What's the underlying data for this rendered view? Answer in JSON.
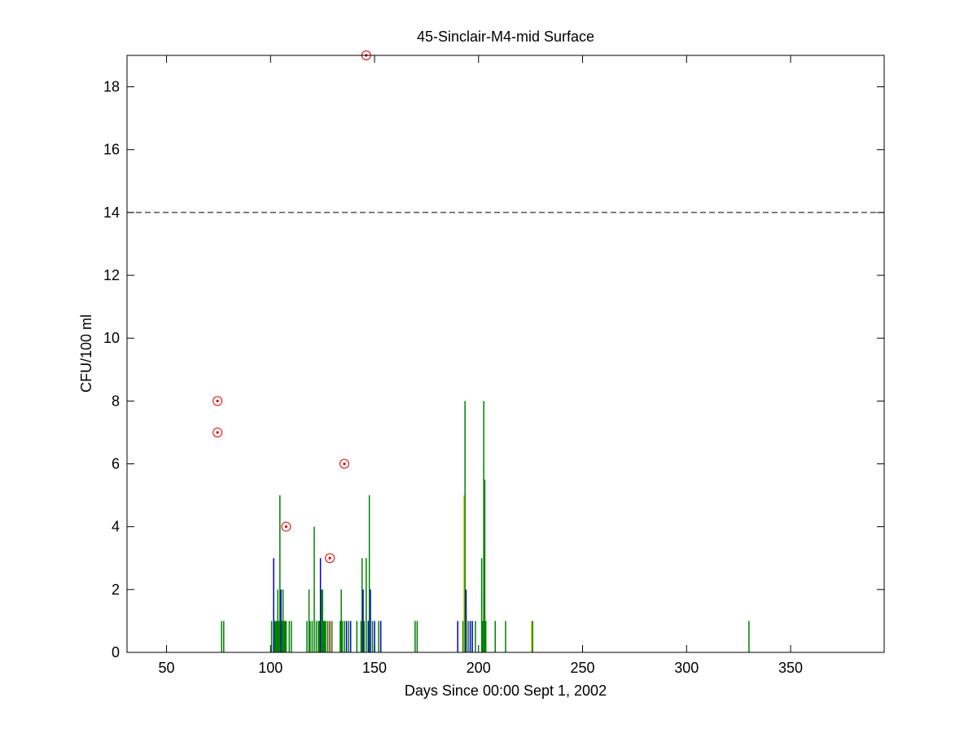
{
  "chart_data": {
    "type": "bar",
    "title": "45-Sinclair-M4-mid Surface",
    "xlabel": "Days Since 00:00 Sept 1, 2002",
    "ylabel": "CFU/100 ml",
    "xlim": [
      31,
      395
    ],
    "ylim": [
      0,
      19
    ],
    "xticks": [
      50,
      100,
      150,
      200,
      250,
      300,
      350
    ],
    "yticks": [
      0,
      2,
      4,
      6,
      8,
      10,
      12,
      14,
      16,
      18
    ],
    "threshold": 14,
    "threshold_style": "dashed",
    "grid": false,
    "legend": "none",
    "colors": {
      "green": "#008000",
      "blue": "#0000cc",
      "red": "#cc0000",
      "yellow": "#cccc00",
      "threshold": "#000000",
      "marker": "#dd0000"
    },
    "bars": [
      {
        "x": 76.5,
        "value": 1,
        "color": "green"
      },
      {
        "x": 77.5,
        "value": 1,
        "color": "green"
      },
      {
        "x": 100.5,
        "value": 1,
        "color": "green"
      },
      {
        "x": 101.5,
        "value": 3,
        "color": "blue"
      },
      {
        "x": 102.0,
        "value": 1,
        "color": "green"
      },
      {
        "x": 102.5,
        "value": 1,
        "color": "green"
      },
      {
        "x": 103.0,
        "value": 1,
        "color": "green"
      },
      {
        "x": 103.5,
        "value": 2,
        "color": "green"
      },
      {
        "x": 104.0,
        "value": 1,
        "color": "green"
      },
      {
        "x": 104.5,
        "value": 5,
        "color": "green"
      },
      {
        "x": 105.0,
        "value": 2,
        "color": "blue"
      },
      {
        "x": 105.5,
        "value": 1,
        "color": "green"
      },
      {
        "x": 106.0,
        "value": 2,
        "color": "green"
      },
      {
        "x": 106.5,
        "value": 1,
        "color": "green"
      },
      {
        "x": 107.0,
        "value": 1,
        "color": "green"
      },
      {
        "x": 107.5,
        "value": 1,
        "color": "green"
      },
      {
        "x": 109.0,
        "value": 1,
        "color": "green"
      },
      {
        "x": 110.0,
        "value": 1,
        "color": "green"
      },
      {
        "x": 117.5,
        "value": 1,
        "color": "green"
      },
      {
        "x": 118.5,
        "value": 2,
        "color": "green"
      },
      {
        "x": 119.0,
        "value": 1,
        "color": "green"
      },
      {
        "x": 120.0,
        "value": 1,
        "color": "green"
      },
      {
        "x": 121.0,
        "value": 4,
        "color": "green"
      },
      {
        "x": 122.0,
        "value": 1,
        "color": "green"
      },
      {
        "x": 123.0,
        "value": 1,
        "color": "green"
      },
      {
        "x": 123.5,
        "value": 1,
        "color": "green"
      },
      {
        "x": 124.0,
        "value": 3,
        "color": "blue"
      },
      {
        "x": 124.5,
        "value": 2,
        "color": "green"
      },
      {
        "x": 125.0,
        "value": 2,
        "color": "green"
      },
      {
        "x": 125.5,
        "value": 1,
        "color": "green"
      },
      {
        "x": 126.0,
        "value": 1,
        "color": "green"
      },
      {
        "x": 126.5,
        "value": 1,
        "color": "green"
      },
      {
        "x": 127.5,
        "value": 1,
        "color": "green"
      },
      {
        "x": 128.5,
        "value": 1,
        "color": "red"
      },
      {
        "x": 129.5,
        "value": 1,
        "color": "green"
      },
      {
        "x": 133.5,
        "value": 1,
        "color": "green"
      },
      {
        "x": 134.0,
        "value": 2,
        "color": "green"
      },
      {
        "x": 134.5,
        "value": 1,
        "color": "green"
      },
      {
        "x": 135.5,
        "value": 1,
        "color": "green"
      },
      {
        "x": 136.5,
        "value": 1,
        "color": "blue"
      },
      {
        "x": 137.5,
        "value": 1,
        "color": "green"
      },
      {
        "x": 138.5,
        "value": 1,
        "color": "blue"
      },
      {
        "x": 141.5,
        "value": 1,
        "color": "green"
      },
      {
        "x": 143.5,
        "value": 1,
        "color": "green"
      },
      {
        "x": 144.0,
        "value": 3,
        "color": "green"
      },
      {
        "x": 144.5,
        "value": 2,
        "color": "blue"
      },
      {
        "x": 145.0,
        "value": 1,
        "color": "green"
      },
      {
        "x": 146.0,
        "value": 3,
        "color": "green"
      },
      {
        "x": 147.0,
        "value": 1,
        "color": "blue"
      },
      {
        "x": 147.5,
        "value": 5,
        "color": "green"
      },
      {
        "x": 148.0,
        "value": 2,
        "color": "blue"
      },
      {
        "x": 149.0,
        "value": 1,
        "color": "green"
      },
      {
        "x": 150.0,
        "value": 1,
        "color": "blue"
      },
      {
        "x": 152.0,
        "value": 1,
        "color": "green"
      },
      {
        "x": 153.0,
        "value": 1,
        "color": "blue"
      },
      {
        "x": 169.5,
        "value": 1,
        "color": "green"
      },
      {
        "x": 170.5,
        "value": 1,
        "color": "green"
      },
      {
        "x": 190.0,
        "value": 1,
        "color": "blue"
      },
      {
        "x": 192.5,
        "value": 1,
        "color": "green"
      },
      {
        "x": 193.0,
        "value": 5,
        "color": "yellow"
      },
      {
        "x": 193.5,
        "value": 8,
        "color": "green"
      },
      {
        "x": 194.0,
        "value": 2,
        "color": "blue"
      },
      {
        "x": 195.0,
        "value": 1,
        "color": "green"
      },
      {
        "x": 196.0,
        "value": 1,
        "color": "blue"
      },
      {
        "x": 197.0,
        "value": 1,
        "color": "blue"
      },
      {
        "x": 198.5,
        "value": 1,
        "color": "green"
      },
      {
        "x": 201.5,
        "value": 3,
        "color": "green"
      },
      {
        "x": 202.0,
        "value": 1,
        "color": "green"
      },
      {
        "x": 202.5,
        "value": 8,
        "color": "green"
      },
      {
        "x": 203.0,
        "value": 5.5,
        "color": "green"
      },
      {
        "x": 203.5,
        "value": 1,
        "color": "green"
      },
      {
        "x": 208.0,
        "value": 1,
        "color": "green"
      },
      {
        "x": 213.0,
        "value": 1,
        "color": "green"
      },
      {
        "x": 225.5,
        "value": 1,
        "color": "yellow"
      },
      {
        "x": 226.0,
        "value": 1,
        "color": "green"
      },
      {
        "x": 330.0,
        "value": 1,
        "color": "green"
      }
    ],
    "markers": [
      {
        "x": 74.5,
        "y": 8
      },
      {
        "x": 74.5,
        "y": 7
      },
      {
        "x": 107.5,
        "y": 4
      },
      {
        "x": 128.5,
        "y": 3
      },
      {
        "x": 135.5,
        "y": 6
      },
      {
        "x": 146.0,
        "y": 19
      }
    ]
  }
}
